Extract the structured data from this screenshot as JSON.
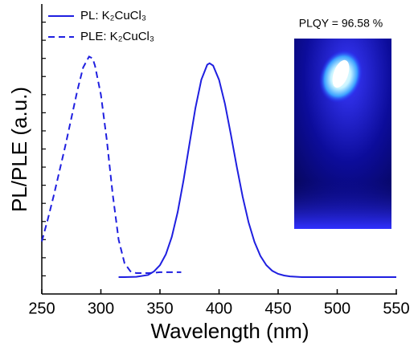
{
  "chart_data": {
    "type": "line",
    "xlabel": "Wavelength (nm)",
    "ylabel": "PL/PLE (a.u.)",
    "annotation": "PLQY = 96.58 %",
    "xlim": [
      250,
      550
    ],
    "xticks": [
      250,
      300,
      350,
      400,
      450,
      500,
      550
    ],
    "ylim": [
      0,
      16
    ],
    "yticks": [
      1,
      2,
      3,
      4,
      5,
      6,
      7,
      8,
      9,
      10,
      11,
      12,
      13,
      14,
      15
    ],
    "legend": "upper left",
    "series": [
      {
        "name": "PL: K₂CuCl₃",
        "color": "#1f1fe0",
        "dashed": false,
        "x": [
          315,
          320,
          330,
          340,
          345,
          350,
          355,
          360,
          365,
          370,
          375,
          380,
          385,
          390,
          392,
          395,
          400,
          405,
          410,
          415,
          420,
          425,
          430,
          435,
          440,
          445,
          450,
          455,
          460,
          470,
          500,
          550
        ],
        "values": [
          0.93,
          0.93,
          0.95,
          1.05,
          1.25,
          1.59,
          2.19,
          3.15,
          4.52,
          6.29,
          8.29,
          10.26,
          11.82,
          12.65,
          12.73,
          12.6,
          11.82,
          10.49,
          8.8,
          7.02,
          5.36,
          3.95,
          2.87,
          2.1,
          1.59,
          1.28,
          1.11,
          1.02,
          0.97,
          0.93,
          0.93,
          0.93
        ]
      },
      {
        "name": "PLE: K₂CuCl₃",
        "color": "#1f1fe0",
        "dashed": true,
        "x": [
          250,
          255,
          260,
          265,
          270,
          275,
          280,
          285,
          290,
          293,
          295,
          300,
          305,
          310,
          315,
          320,
          325,
          330,
          340,
          350,
          368
        ],
        "values": [
          2.9,
          4.1,
          5.4,
          6.8,
          8.2,
          9.7,
          11.2,
          12.5,
          13.1,
          13.0,
          12.6,
          11.0,
          8.5,
          5.5,
          3.0,
          1.7,
          1.25,
          1.15,
          1.15,
          1.2,
          1.2
        ]
      }
    ]
  }
}
